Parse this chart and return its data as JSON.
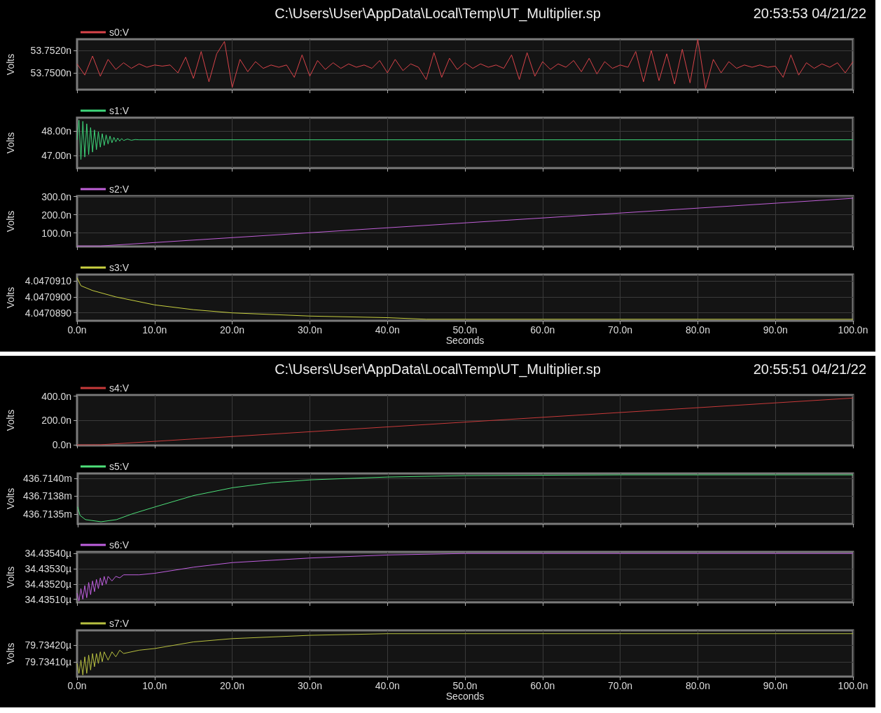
{
  "chart_data": [
    {
      "type": "line",
      "title": "C:\\Users\\User\\AppData\\Local\\Temp\\UT_Multiplier.sp",
      "subtitle": "20:53:53 04/21/22",
      "ylabel": "Volts",
      "legend": "top left",
      "grid": true,
      "tick_labels": "y",
      "xlim": [
        0,
        100
      ],
      "xticks": [
        {
          "value": 0,
          "label": null
        },
        {
          "value": 10,
          "label": null
        },
        {
          "value": 20,
          "label": null
        },
        {
          "value": 30,
          "label": null
        },
        {
          "value": 40,
          "label": null
        },
        {
          "value": 50,
          "label": null
        },
        {
          "value": 60,
          "label": null
        },
        {
          "value": 70,
          "label": null
        },
        {
          "value": 80,
          "label": null
        },
        {
          "value": 90,
          "label": null
        },
        {
          "value": 100,
          "label": null
        }
      ],
      "ylim": [
        53.7485,
        53.753
      ],
      "yticks": [
        {
          "value": 53.75,
          "label": "53.7500n"
        },
        {
          "value": 53.752,
          "label": "53.7520n"
        }
      ],
      "series": [
        {
          "name": "s0:V",
          "color": "#d9444a",
          "x": [
            0,
            1,
            2,
            3,
            4,
            5,
            6,
            7,
            8,
            9,
            10,
            11,
            12,
            13,
            14,
            15,
            16,
            17,
            18,
            19,
            20,
            21,
            22,
            23,
            24,
            25,
            26,
            27,
            28,
            29,
            30,
            31,
            32,
            33,
            34,
            35,
            36,
            37,
            38,
            39,
            40,
            41,
            42,
            43,
            44,
            45,
            46,
            47,
            48,
            49,
            50,
            51,
            52,
            53,
            54,
            55,
            56,
            57,
            58,
            59,
            60,
            61,
            62,
            63,
            64,
            65,
            66,
            67,
            68,
            69,
            70,
            71,
            72,
            73,
            74,
            75,
            76,
            77,
            78,
            79,
            80,
            81,
            82,
            83,
            84,
            85,
            86,
            87,
            88,
            89,
            90,
            91,
            92,
            93,
            94,
            95,
            96,
            97,
            98,
            99,
            100
          ],
          "values": [
            53.7508,
            53.7498,
            53.7515,
            53.7497,
            53.7512,
            53.7503,
            53.7509,
            53.7504,
            53.7508,
            53.7505,
            53.7507,
            53.7506,
            53.7507,
            53.75,
            53.7514,
            53.7495,
            53.7519,
            53.7492,
            53.7517,
            53.7528,
            53.7487,
            53.7512,
            53.7501,
            53.751,
            53.7504,
            53.7507,
            53.7505,
            53.7507,
            53.7496,
            53.7516,
            53.7497,
            53.7511,
            53.7503,
            53.7509,
            53.7504,
            53.7508,
            53.7505,
            53.7507,
            53.7504,
            53.7511,
            53.75,
            53.7512,
            53.7502,
            53.7508,
            53.7505,
            53.7494,
            53.7518,
            53.7496,
            53.7513,
            53.7503,
            53.7509,
            53.7504,
            53.7508,
            53.7505,
            53.7507,
            53.7504,
            53.7516,
            53.7494,
            53.7518,
            53.7497,
            53.751,
            53.7503,
            53.7508,
            53.7505,
            53.7511,
            53.7501,
            53.7513,
            53.7499,
            53.751,
            53.7504,
            53.7507,
            53.7505,
            53.7519,
            53.7492,
            53.752,
            53.7493,
            53.7517,
            53.749,
            53.7521,
            53.7491,
            53.753,
            53.7486,
            53.7512,
            53.75,
            53.751,
            53.7504,
            53.7507,
            53.7505,
            53.7507,
            53.7505,
            53.7506,
            53.7496,
            53.7516,
            53.7498,
            53.7509,
            53.7504,
            53.7508,
            53.7505,
            53.7509,
            53.75,
            53.751
          ]
        }
      ]
    },
    {
      "type": "line",
      "ylabel": "Volts",
      "legend": "top left",
      "grid": true,
      "tick_labels": "y",
      "xlim": [
        0,
        100
      ],
      "xticks": [
        {
          "value": 0,
          "label": null
        },
        {
          "value": 10,
          "label": null
        },
        {
          "value": 20,
          "label": null
        },
        {
          "value": 30,
          "label": null
        },
        {
          "value": 40,
          "label": null
        },
        {
          "value": 50,
          "label": null
        },
        {
          "value": 60,
          "label": null
        },
        {
          "value": 70,
          "label": null
        },
        {
          "value": 80,
          "label": null
        },
        {
          "value": 90,
          "label": null
        },
        {
          "value": 100,
          "label": null
        }
      ],
      "ylim": [
        46.5,
        48.55
      ],
      "yticks": [
        {
          "value": 47,
          "label": "47.00n"
        },
        {
          "value": 48,
          "label": "48.00n"
        }
      ],
      "series": [
        {
          "name": "s1:V",
          "color": "#3ed67a",
          "x": [
            0,
            0.25,
            0.5,
            0.75,
            1,
            1.25,
            1.5,
            1.75,
            2,
            2.25,
            2.5,
            2.75,
            3,
            3.25,
            3.5,
            3.75,
            4,
            4.25,
            4.5,
            4.75,
            5,
            5.25,
            5.5,
            5.75,
            6,
            6.5,
            7,
            7.5,
            8,
            100
          ],
          "values": [
            47.65,
            48.45,
            46.85,
            48.4,
            46.95,
            48.3,
            47.05,
            48.15,
            47.15,
            48.05,
            47.25,
            47.98,
            47.35,
            47.9,
            47.42,
            47.85,
            47.48,
            47.8,
            47.53,
            47.75,
            47.57,
            47.72,
            47.6,
            47.7,
            47.62,
            47.68,
            47.63,
            47.66,
            47.65,
            47.65
          ]
        }
      ]
    },
    {
      "type": "line",
      "ylabel": "Volts",
      "legend": "top left",
      "grid": true,
      "tick_labels": "y",
      "xlim": [
        0,
        100
      ],
      "xticks": [
        {
          "value": 0,
          "label": null
        },
        {
          "value": 10,
          "label": null
        },
        {
          "value": 20,
          "label": null
        },
        {
          "value": 30,
          "label": null
        },
        {
          "value": 40,
          "label": null
        },
        {
          "value": 50,
          "label": null
        },
        {
          "value": 60,
          "label": null
        },
        {
          "value": 70,
          "label": null
        },
        {
          "value": 80,
          "label": null
        },
        {
          "value": 90,
          "label": null
        },
        {
          "value": 100,
          "label": null
        }
      ],
      "ylim": [
        25,
        302
      ],
      "yticks": [
        {
          "value": 100,
          "label": "100.0n"
        },
        {
          "value": 200,
          "label": "200.0n"
        },
        {
          "value": 300,
          "label": "300.0n"
        }
      ],
      "series": [
        {
          "name": "s2:V",
          "color": "#c060d8",
          "x": [
            0,
            3,
            100
          ],
          "values": [
            28,
            28,
            290
          ]
        }
      ]
    },
    {
      "type": "line",
      "ylabel": "Volts",
      "xlabel": "Seconds",
      "legend": "top left",
      "grid": true,
      "xlim": [
        0,
        100
      ],
      "xticks": [
        {
          "value": 0,
          "label": "0.0n"
        },
        {
          "value": 10,
          "label": "10.0n"
        },
        {
          "value": 20,
          "label": "20.0n"
        },
        {
          "value": 30,
          "label": "30.0n"
        },
        {
          "value": 40,
          "label": "40.0n"
        },
        {
          "value": 50,
          "label": "50.0n"
        },
        {
          "value": 60,
          "label": "60.0n"
        },
        {
          "value": 70,
          "label": "70.0n"
        },
        {
          "value": 80,
          "label": "80.0n"
        },
        {
          "value": 90,
          "label": "90.0n"
        },
        {
          "value": 100,
          "label": "100.0n"
        }
      ],
      "ylim": [
        4.0470885,
        4.0470914
      ],
      "yticks": [
        {
          "value": 4.047089,
          "label": "4.0470890"
        },
        {
          "value": 4.04709,
          "label": "4.0470900"
        },
        {
          "value": 4.047091,
          "label": "4.0470910"
        }
      ],
      "series": [
        {
          "name": "s3:V",
          "color": "#c8d040",
          "x": [
            0,
            0.5,
            2,
            5,
            10,
            15,
            20,
            30,
            40,
            45,
            100
          ],
          "values": [
            4.0470912,
            4.0470907,
            4.0470904,
            4.04709,
            4.0470895,
            4.0470892,
            4.047089,
            4.0470888,
            4.0470887,
            4.0470886,
            4.0470886
          ]
        }
      ]
    },
    {
      "type": "line",
      "title": "C:\\Users\\User\\AppData\\Local\\Temp\\UT_Multiplier.sp",
      "subtitle": "20:55:51 04/21/22",
      "ylabel": "Volts",
      "legend": "top left",
      "grid": true,
      "tick_labels": "y",
      "xlim": [
        0,
        100
      ],
      "xticks": [
        {
          "value": 0,
          "label": null
        },
        {
          "value": 10,
          "label": null
        },
        {
          "value": 20,
          "label": null
        },
        {
          "value": 30,
          "label": null
        },
        {
          "value": 40,
          "label": null
        },
        {
          "value": 50,
          "label": null
        },
        {
          "value": 60,
          "label": null
        },
        {
          "value": 70,
          "label": null
        },
        {
          "value": 80,
          "label": null
        },
        {
          "value": 90,
          "label": null
        },
        {
          "value": 100,
          "label": null
        }
      ],
      "ylim": [
        -5,
        410
      ],
      "yticks": [
        {
          "value": 0,
          "label": "0.0n"
        },
        {
          "value": 200,
          "label": "200.0n"
        },
        {
          "value": 400,
          "label": "400.0n"
        }
      ],
      "series": [
        {
          "name": "s4:V",
          "color": "#c83a3a",
          "x": [
            0,
            3,
            100
          ],
          "values": [
            0,
            1,
            385
          ]
        }
      ]
    },
    {
      "type": "line",
      "ylabel": "Volts",
      "legend": "top left",
      "grid": true,
      "tick_labels": "y",
      "xlim": [
        0,
        100
      ],
      "xticks": [
        {
          "value": 0,
          "label": null
        },
        {
          "value": 10,
          "label": null
        },
        {
          "value": 20,
          "label": null
        },
        {
          "value": 30,
          "label": null
        },
        {
          "value": 40,
          "label": null
        },
        {
          "value": 50,
          "label": null
        },
        {
          "value": 60,
          "label": null
        },
        {
          "value": 70,
          "label": null
        },
        {
          "value": 80,
          "label": null
        },
        {
          "value": 90,
          "label": null
        },
        {
          "value": 100,
          "label": null
        }
      ],
      "ylim": [
        436.71336,
        436.71407
      ],
      "yticks": [
        {
          "value": 436.7135,
          "label": "436.7135m"
        },
        {
          "value": 436.71375,
          "label": "436.7138m"
        },
        {
          "value": 436.714,
          "label": "436.7140m"
        }
      ],
      "series": [
        {
          "name": "s5:V",
          "color": "#4ee07a",
          "x": [
            0,
            0.3,
            1,
            3,
            5,
            7,
            10,
            15,
            20,
            25,
            30,
            40,
            50,
            70,
            100
          ],
          "values": [
            436.7136,
            436.71348,
            436.71342,
            436.71339,
            436.71342,
            436.7135,
            436.7136,
            436.71376,
            436.71387,
            436.71394,
            436.71398,
            436.71402,
            436.71404,
            436.71405,
            436.71405
          ]
        }
      ]
    },
    {
      "type": "line",
      "ylabel": "Volts",
      "legend": "top left",
      "grid": true,
      "tick_labels": "y",
      "xlim": [
        0,
        100
      ],
      "xticks": [
        {
          "value": 0,
          "label": null
        },
        {
          "value": 10,
          "label": null
        },
        {
          "value": 20,
          "label": null
        },
        {
          "value": 30,
          "label": null
        },
        {
          "value": 40,
          "label": null
        },
        {
          "value": 50,
          "label": null
        },
        {
          "value": 60,
          "label": null
        },
        {
          "value": 70,
          "label": null
        },
        {
          "value": 80,
          "label": null
        },
        {
          "value": 90,
          "label": null
        },
        {
          "value": 100,
          "label": null
        }
      ],
      "ylim": [
        34.43508,
        34.43541
      ],
      "yticks": [
        {
          "value": 34.4351,
          "label": "34.43510µ"
        },
        {
          "value": 34.4352,
          "label": "34.43520µ"
        },
        {
          "value": 34.4353,
          "label": "34.43530µ"
        },
        {
          "value": 34.4354,
          "label": "34.43540µ"
        }
      ],
      "series": [
        {
          "name": "s6:V",
          "color": "#c060e0",
          "x": [
            0,
            0.25,
            0.5,
            0.75,
            1,
            1.25,
            1.5,
            1.75,
            2,
            2.25,
            2.5,
            2.75,
            3,
            3.25,
            3.5,
            3.75,
            4,
            4.5,
            5,
            5.5,
            6,
            8,
            10,
            15,
            20,
            30,
            40,
            50,
            100
          ],
          "values": [
            34.43514,
            34.43509,
            34.43517,
            34.4351,
            34.43519,
            34.43511,
            34.43521,
            34.43513,
            34.43522,
            34.43515,
            34.43523,
            34.43517,
            34.43524,
            34.43519,
            34.43525,
            34.4352,
            34.43525,
            34.43522,
            34.43525,
            34.43524,
            34.43526,
            34.43526,
            34.43527,
            34.43531,
            34.43534,
            34.43537,
            34.43539,
            34.4354,
            34.4354
          ]
        }
      ]
    },
    {
      "type": "line",
      "ylabel": "Volts",
      "xlabel": "Seconds",
      "legend": "top left",
      "grid": true,
      "xlim": [
        0,
        100
      ],
      "xticks": [
        {
          "value": 0,
          "label": "0.0n"
        },
        {
          "value": 10,
          "label": "10.0n"
        },
        {
          "value": 20,
          "label": "20.0n"
        },
        {
          "value": 30,
          "label": "30.0n"
        },
        {
          "value": 40,
          "label": "40.0n"
        },
        {
          "value": 50,
          "label": "50.0n"
        },
        {
          "value": 60,
          "label": "60.0n"
        },
        {
          "value": 70,
          "label": "70.0n"
        },
        {
          "value": 80,
          "label": "80.0n"
        },
        {
          "value": 90,
          "label": "90.0n"
        },
        {
          "value": 100,
          "label": "100.0n"
        }
      ],
      "ylim": [
        79.73401,
        79.73429
      ],
      "yticks": [
        {
          "value": 79.7341,
          "label": "79.73410µ"
        },
        {
          "value": 79.7342,
          "label": "79.73420µ"
        }
      ],
      "series": [
        {
          "name": "s7:V",
          "color": "#b8c040",
          "x": [
            0,
            0.25,
            0.5,
            0.75,
            1,
            1.25,
            1.5,
            1.75,
            2,
            2.25,
            2.5,
            2.75,
            3,
            3.25,
            3.5,
            4,
            4.5,
            5,
            5.5,
            6,
            8,
            10,
            15,
            20,
            30,
            40,
            100
          ],
          "values": [
            79.73409,
            79.73403,
            79.73411,
            79.73402,
            79.73413,
            79.73403,
            79.73414,
            79.73405,
            79.73415,
            79.73407,
            79.73415,
            79.73409,
            79.73416,
            79.7341,
            79.73416,
            79.73411,
            79.73416,
            79.73413,
            79.73417,
            79.73415,
            79.73417,
            79.73418,
            79.73422,
            79.73424,
            79.73426,
            79.73427,
            79.73427
          ]
        }
      ]
    }
  ]
}
